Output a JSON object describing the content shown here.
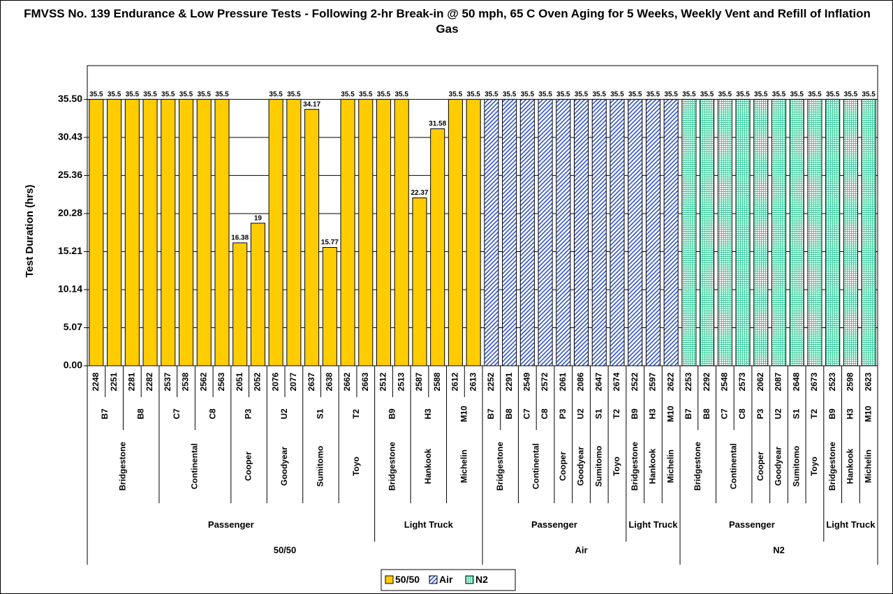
{
  "chart_data": {
    "type": "bar",
    "title": "FMVSS No. 139 Endurance & Low Pressure Tests - Following 2-hr Break-in @ 50 mph, 65 C Oven Aging for 5 Weeks, Weekly Vent and Refill of Inflation Gas",
    "y_label": "Test Duration (hrs)",
    "ylim": [
      0,
      40
    ],
    "yticks": [
      {
        "value": 0,
        "label": "0.00"
      },
      5.07,
      10.14,
      15.21,
      20.28,
      25.36,
      30.43,
      {
        "value": 35.5,
        "label": "35.50"
      }
    ],
    "grid": true,
    "legend": "bottom",
    "series": [
      {
        "name": "50/50",
        "color": "#ffcc00",
        "pattern": "solid",
        "segments": [
          {
            "name": "Passenger",
            "brands": [
              {
                "name": "Bridgestone",
                "models": [
                  {
                    "name": "B7",
                    "tires": [
                      "2248",
                      "2251"
                    ],
                    "values": [
                      35.5,
                      35.5
                    ]
                  },
                  {
                    "name": "B8",
                    "tires": [
                      "2281",
                      "2282"
                    ],
                    "values": [
                      35.5,
                      35.5
                    ]
                  }
                ]
              },
              {
                "name": "Continental",
                "models": [
                  {
                    "name": "C7",
                    "tires": [
                      "2537",
                      "2538"
                    ],
                    "values": [
                      35.5,
                      35.5
                    ]
                  },
                  {
                    "name": "C8",
                    "tires": [
                      "2562",
                      "2563"
                    ],
                    "values": [
                      35.5,
                      35.5
                    ]
                  }
                ]
              },
              {
                "name": "Cooper",
                "models": [
                  {
                    "name": "P3",
                    "tires": [
                      "2051",
                      "2052"
                    ],
                    "values": [
                      16.38,
                      19
                    ]
                  }
                ]
              },
              {
                "name": "Goodyear",
                "models": [
                  {
                    "name": "U2",
                    "tires": [
                      "2076",
                      "2077"
                    ],
                    "values": [
                      35.5,
                      35.5
                    ]
                  }
                ]
              },
              {
                "name": "Sumitomo",
                "models": [
                  {
                    "name": "S1",
                    "tires": [
                      "2637",
                      "2638"
                    ],
                    "values": [
                      34.17,
                      15.77
                    ]
                  }
                ]
              },
              {
                "name": "Toyo",
                "models": [
                  {
                    "name": "T2",
                    "tires": [
                      "2662",
                      "2663"
                    ],
                    "values": [
                      35.5,
                      35.5
                    ]
                  }
                ]
              }
            ]
          },
          {
            "name": "Light Truck",
            "brands": [
              {
                "name": "Bridgestone",
                "models": [
                  {
                    "name": "B9",
                    "tires": [
                      "2512",
                      "2513"
                    ],
                    "values": [
                      35.5,
                      35.5
                    ]
                  }
                ]
              },
              {
                "name": "Hankook",
                "models": [
                  {
                    "name": "H3",
                    "tires": [
                      "2587",
                      "2588"
                    ],
                    "values": [
                      22.37,
                      31.58
                    ]
                  }
                ]
              },
              {
                "name": "Michelin",
                "models": [
                  {
                    "name": "M10",
                    "tires": [
                      "2612",
                      "2613"
                    ],
                    "values": [
                      35.5,
                      35.5
                    ]
                  }
                ]
              }
            ]
          }
        ]
      },
      {
        "name": "Air",
        "color": "#3355cc",
        "pattern": "diagonal",
        "segments": [
          {
            "name": "Passenger",
            "brands": [
              {
                "name": "Bridgestone",
                "models": [
                  {
                    "name": "B7",
                    "tires": [
                      "2252"
                    ],
                    "values": [
                      35.5
                    ]
                  },
                  {
                    "name": "B8",
                    "tires": [
                      "2291"
                    ],
                    "values": [
                      35.5
                    ]
                  }
                ]
              },
              {
                "name": "Continental",
                "models": [
                  {
                    "name": "C7",
                    "tires": [
                      "2549"
                    ],
                    "values": [
                      35.5
                    ]
                  },
                  {
                    "name": "C8",
                    "tires": [
                      "2572"
                    ],
                    "values": [
                      35.5
                    ]
                  }
                ]
              },
              {
                "name": "Cooper",
                "models": [
                  {
                    "name": "P3",
                    "tires": [
                      "2061"
                    ],
                    "values": [
                      35.5
                    ]
                  }
                ]
              },
              {
                "name": "Goodyear",
                "models": [
                  {
                    "name": "U2",
                    "tires": [
                      "2086"
                    ],
                    "values": [
                      35.5
                    ]
                  }
                ]
              },
              {
                "name": "Sumitomo",
                "models": [
                  {
                    "name": "S1",
                    "tires": [
                      "2647"
                    ],
                    "values": [
                      35.5
                    ]
                  }
                ]
              },
              {
                "name": "Toyo",
                "models": [
                  {
                    "name": "T2",
                    "tires": [
                      "2674"
                    ],
                    "values": [
                      35.5
                    ]
                  }
                ]
              }
            ]
          },
          {
            "name": "Light Truck",
            "brands": [
              {
                "name": "Bridgestone",
                "models": [
                  {
                    "name": "B9",
                    "tires": [
                      "2522"
                    ],
                    "values": [
                      35.5
                    ]
                  }
                ]
              },
              {
                "name": "Hankook",
                "models": [
                  {
                    "name": "H3",
                    "tires": [
                      "2597"
                    ],
                    "values": [
                      35.5
                    ]
                  }
                ]
              },
              {
                "name": "Michelin",
                "models": [
                  {
                    "name": "M10",
                    "tires": [
                      "2622"
                    ],
                    "values": [
                      35.5
                    ]
                  }
                ]
              }
            ]
          }
        ]
      },
      {
        "name": "N2",
        "color": "#33cc99",
        "pattern": "grid",
        "segments": [
          {
            "name": "Passenger",
            "brands": [
              {
                "name": "Bridgestone",
                "models": [
                  {
                    "name": "B7",
                    "tires": [
                      "2253"
                    ],
                    "values": [
                      35.5
                    ]
                  },
                  {
                    "name": "B8",
                    "tires": [
                      "2292"
                    ],
                    "values": [
                      35.5
                    ]
                  }
                ]
              },
              {
                "name": "Continental",
                "models": [
                  {
                    "name": "C7",
                    "tires": [
                      "2548"
                    ],
                    "values": [
                      35.5
                    ]
                  },
                  {
                    "name": "C8",
                    "tires": [
                      "2573"
                    ],
                    "values": [
                      35.5
                    ]
                  }
                ]
              },
              {
                "name": "Cooper",
                "models": [
                  {
                    "name": "P3",
                    "tires": [
                      "2062"
                    ],
                    "values": [
                      35.5
                    ]
                  }
                ]
              },
              {
                "name": "Goodyear",
                "models": [
                  {
                    "name": "U2",
                    "tires": [
                      "2087"
                    ],
                    "values": [
                      35.5
                    ]
                  }
                ]
              },
              {
                "name": "Sumitomo",
                "models": [
                  {
                    "name": "S1",
                    "tires": [
                      "2648"
                    ],
                    "values": [
                      35.5
                    ]
                  }
                ]
              },
              {
                "name": "Toyo",
                "models": [
                  {
                    "name": "T2",
                    "tires": [
                      "2673"
                    ],
                    "values": [
                      35.5
                    ]
                  }
                ]
              }
            ]
          },
          {
            "name": "Light Truck",
            "brands": [
              {
                "name": "Bridgestone",
                "models": [
                  {
                    "name": "B9",
                    "tires": [
                      "2523"
                    ],
                    "values": [
                      35.5
                    ]
                  }
                ]
              },
              {
                "name": "Hankook",
                "models": [
                  {
                    "name": "H3",
                    "tires": [
                      "2598"
                    ],
                    "values": [
                      35.5
                    ]
                  }
                ]
              },
              {
                "name": "Michelin",
                "models": [
                  {
                    "name": "M10",
                    "tires": [
                      "2623"
                    ],
                    "values": [
                      35.5
                    ]
                  }
                ]
              }
            ]
          }
        ]
      }
    ]
  }
}
